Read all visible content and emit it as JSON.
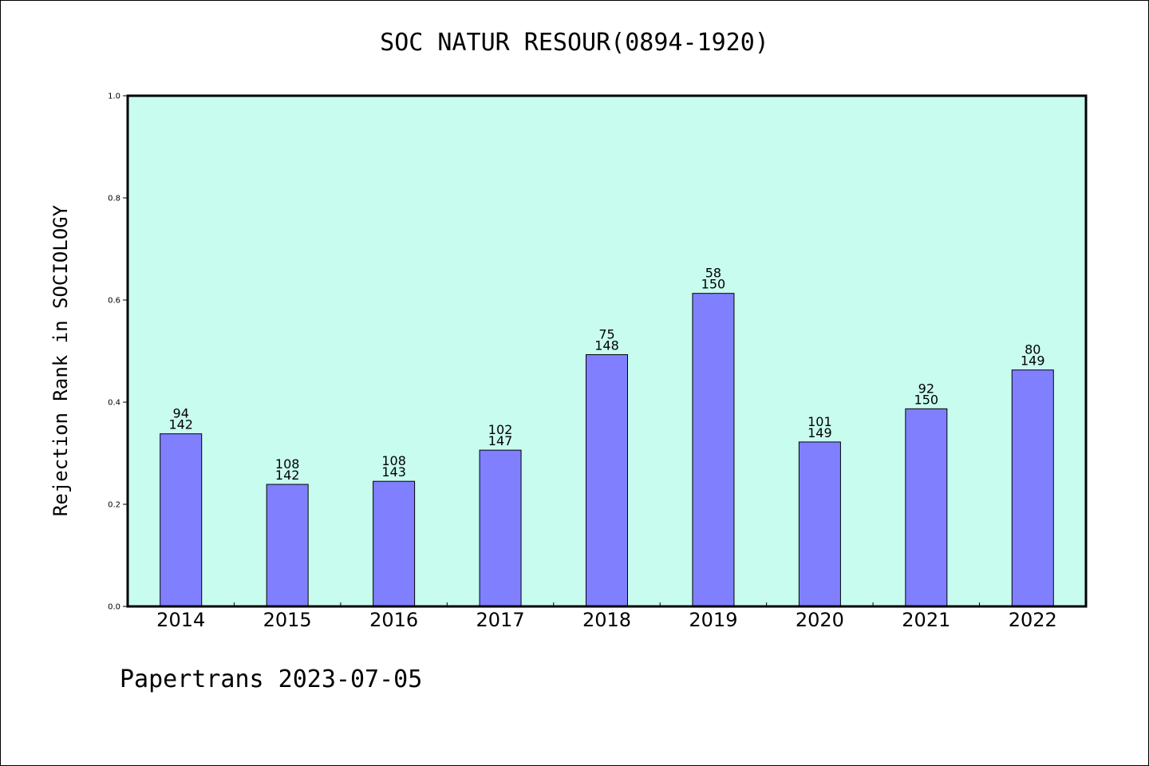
{
  "chart_data": {
    "type": "bar",
    "title": "SOC NATUR RESOUR(0894-1920)",
    "xlabel": "",
    "ylabel": "Rejection Rank in SOCIOLOGY",
    "ylim": [
      0,
      1.0
    ],
    "yticks": [
      "0.0",
      "0.2",
      "0.4",
      "0.6",
      "0.8",
      "1.0"
    ],
    "grid": false,
    "categories": [
      "2014",
      "2015",
      "2016",
      "2017",
      "2018",
      "2019",
      "2020",
      "2021",
      "2022"
    ],
    "values": [
      0.338,
      0.239,
      0.245,
      0.306,
      0.493,
      0.613,
      0.322,
      0.387,
      0.463
    ],
    "bar_labels": [
      [
        "94",
        "142"
      ],
      [
        "108",
        "142"
      ],
      [
        "108",
        "143"
      ],
      [
        "102",
        "147"
      ],
      [
        "75",
        "148"
      ],
      [
        "58",
        "150"
      ],
      [
        "101",
        "149"
      ],
      [
        "92",
        "150"
      ],
      [
        "80",
        "149"
      ]
    ],
    "colors": {
      "plot_background": "#c8fcee",
      "bar_fill": "#8080ff",
      "bar_edge": "#000000"
    }
  },
  "footer": "Papertrans 2023-07-05"
}
